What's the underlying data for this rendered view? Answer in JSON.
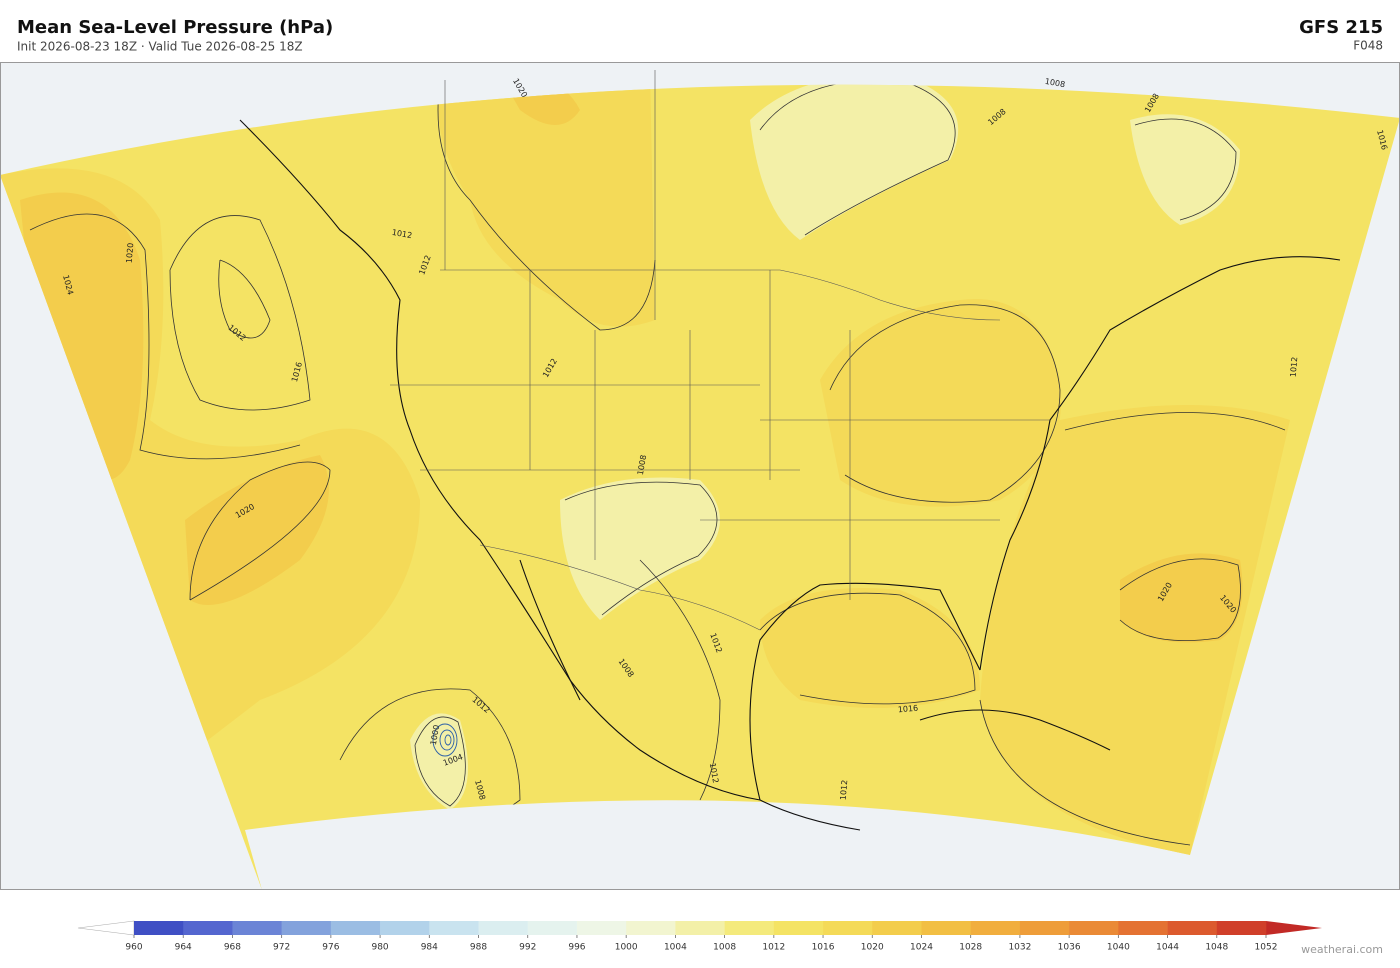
{
  "header": {
    "title": "Mean Sea-Level Pressure  (hPa)",
    "subtitle": "Init 2026-08-23 18Z   ·   Valid Tue 2026-08-25 18Z",
    "model": "GFS  215",
    "forecast_hour": "F048"
  },
  "contour_labels": [
    1020,
    1008,
    1008,
    1008,
    1016,
    1012,
    1012,
    1020,
    1024,
    1012,
    1016,
    1012,
    1012,
    1008,
    1020,
    1012,
    1008,
    1020,
    1020,
    1016,
    1012,
    1004,
    1000,
    1008,
    1012,
    1012
  ],
  "colorbar": {
    "ticks": [
      960,
      964,
      968,
      972,
      976,
      980,
      984,
      988,
      992,
      996,
      1000,
      1004,
      1008,
      1012,
      1016,
      1020,
      1024,
      1028,
      1032,
      1036,
      1040,
      1044,
      1048,
      1052
    ],
    "colors": [
      "#3f4fc4",
      "#5466cf",
      "#6b84d6",
      "#83a2dc",
      "#9bbde3",
      "#b2d2ea",
      "#c9e3ef",
      "#dbeef0",
      "#e5f3ee",
      "#eef6e6",
      "#f2f5d0",
      "#f3f0a8",
      "#f4ea7c",
      "#f4e364",
      "#f4da58",
      "#f3cd4c",
      "#f2bf44",
      "#f1ae3e",
      "#ee9d3a",
      "#ea8a36",
      "#e47232",
      "#dc5a2e",
      "#d03f2a"
    ],
    "under": "#ffffff",
    "over": "#c22a26"
  },
  "watermark": "weatherai.com"
}
